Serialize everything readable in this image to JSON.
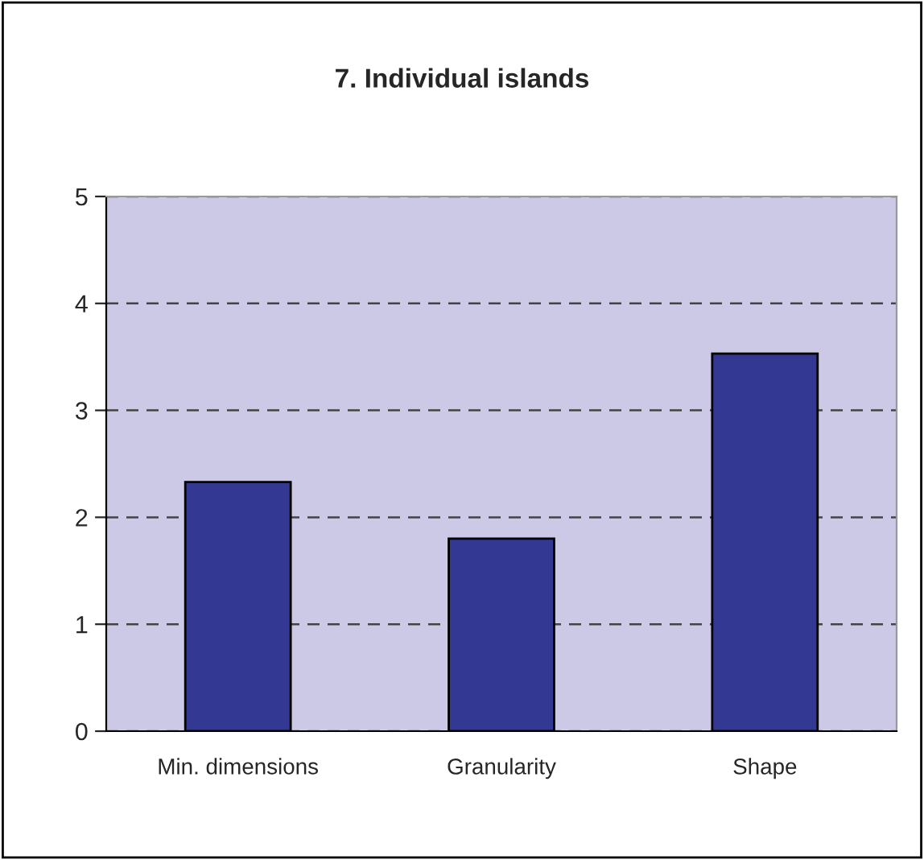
{
  "chart_data": {
    "type": "bar",
    "title": "7. Individual islands",
    "categories": [
      "Min. dimensions",
      "Granularity",
      "Shape"
    ],
    "values": [
      2.33,
      1.8,
      3.53
    ],
    "color": "#333893",
    "ylim": [
      0,
      5
    ],
    "yticks": [
      0,
      1,
      2,
      3,
      4,
      5
    ],
    "grid": "y",
    "line_style": "dashed"
  }
}
